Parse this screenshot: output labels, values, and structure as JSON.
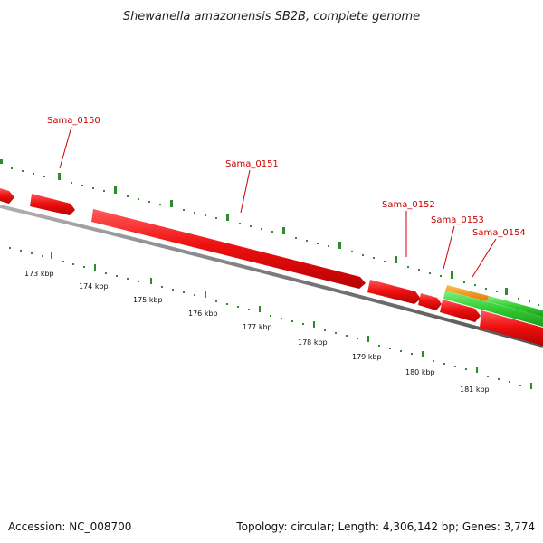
{
  "title": "Shewanella amazonensis SB2B, complete genome",
  "footer": {
    "accession": "Accession: NC_008700",
    "topology": "Topology: circular; Length: 4,306,142 bp; Genes: 3,774"
  },
  "gene_labels": [
    "Sama_0150",
    "Sama_0151",
    "Sama_0152",
    "Sama_0153",
    "Sama_0154"
  ],
  "kbp_labels": [
    "173 kbp",
    "174 kbp",
    "175 kbp",
    "176 kbp",
    "177 kbp",
    "178 kbp",
    "179 kbp",
    "180 kbp",
    "181 kbp"
  ],
  "colors": {
    "cds": "#ee1111",
    "rna_orange": "#ff9900",
    "rna_green": "#33cc33",
    "backbone": "#7a7a7a",
    "tick": "#2e8b2e",
    "label_red": "#cc0000"
  }
}
